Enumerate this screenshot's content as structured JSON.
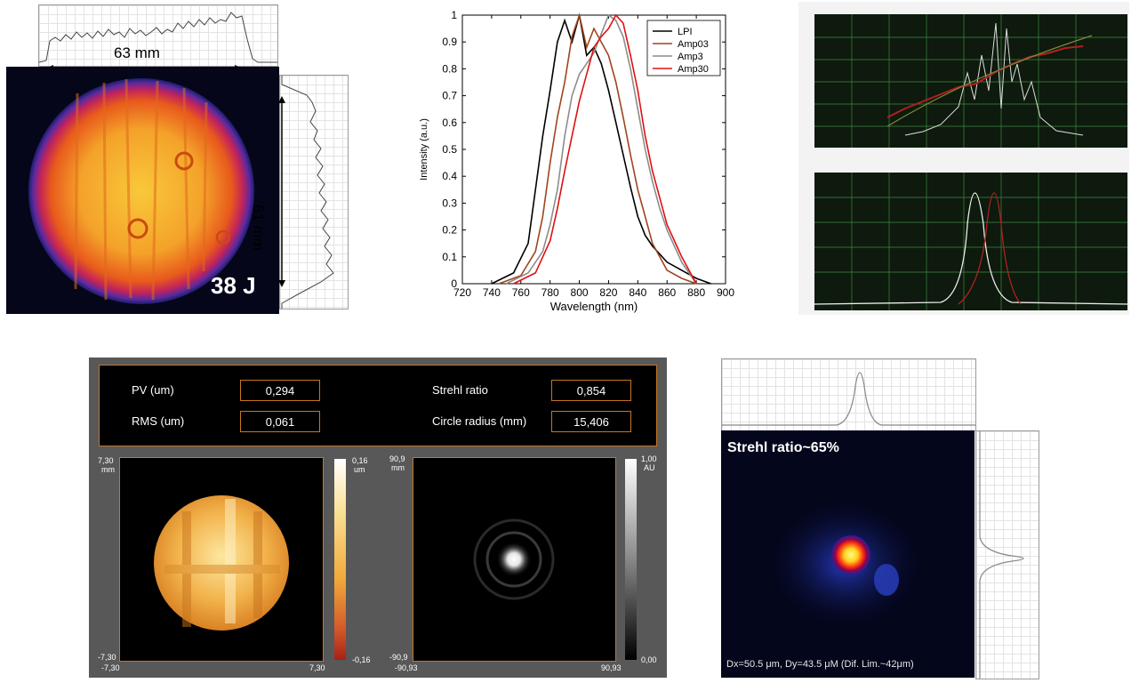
{
  "beam": {
    "width_label": "63 mm",
    "height_label": "61 mm",
    "energy_label": "38 J"
  },
  "spectrum": {
    "xlabel": "Wavelength (nm)",
    "ylabel": "Intensity (a.u.)"
  },
  "chart_data": {
    "type": "line",
    "xlabel": "Wavelength (nm)",
    "ylabel": "Intensity (a.u.)",
    "xlim": [
      720,
      900
    ],
    "ylim": [
      0,
      1
    ],
    "x_ticks": [
      "720",
      "740",
      "760",
      "780",
      "800",
      "820",
      "840",
      "860",
      "880",
      "900"
    ],
    "y_ticks": [
      "0",
      "0.1",
      "0.2",
      "0.3",
      "0.4",
      "0.5",
      "0.6",
      "0.7",
      "0.8",
      "0.9",
      "1"
    ],
    "legend_position": "top-right",
    "series": [
      {
        "name": "LPI",
        "color": "#000000",
        "x": [
          740,
          755,
          765,
          770,
          775,
          780,
          785,
          790,
          795,
          800,
          805,
          810,
          815,
          820,
          825,
          830,
          835,
          840,
          845,
          850,
          860,
          870,
          880,
          890
        ],
        "y": [
          0,
          0.04,
          0.15,
          0.35,
          0.55,
          0.72,
          0.9,
          0.98,
          0.9,
          1.0,
          0.85,
          0.88,
          0.82,
          0.72,
          0.6,
          0.48,
          0.36,
          0.25,
          0.18,
          0.14,
          0.08,
          0.05,
          0.02,
          0
        ]
      },
      {
        "name": "Amp03",
        "color": "#a0441e",
        "x": [
          745,
          760,
          770,
          775,
          780,
          785,
          790,
          795,
          800,
          805,
          810,
          815,
          820,
          825,
          830,
          835,
          840,
          845,
          850,
          860,
          870,
          880
        ],
        "y": [
          0,
          0.03,
          0.12,
          0.25,
          0.45,
          0.62,
          0.75,
          0.92,
          1.0,
          0.88,
          0.95,
          0.9,
          0.85,
          0.75,
          0.62,
          0.48,
          0.35,
          0.25,
          0.15,
          0.05,
          0.02,
          0
        ]
      },
      {
        "name": "Amp3",
        "color": "#8c8c8c",
        "x": [
          750,
          765,
          775,
          780,
          785,
          790,
          795,
          800,
          805,
          810,
          815,
          820,
          825,
          830,
          835,
          840,
          845,
          850,
          855,
          860,
          870,
          880
        ],
        "y": [
          0,
          0.04,
          0.12,
          0.22,
          0.35,
          0.55,
          0.7,
          0.78,
          0.82,
          0.86,
          0.93,
          1.0,
          0.98,
          0.92,
          0.8,
          0.65,
          0.5,
          0.38,
          0.28,
          0.2,
          0.08,
          0
        ]
      },
      {
        "name": "Amp30",
        "color": "#e01010",
        "x": [
          755,
          770,
          780,
          785,
          790,
          795,
          800,
          805,
          810,
          815,
          820,
          825,
          830,
          835,
          840,
          845,
          850,
          855,
          860,
          870,
          880
        ],
        "y": [
          0,
          0.04,
          0.16,
          0.28,
          0.42,
          0.55,
          0.68,
          0.78,
          0.88,
          0.92,
          0.95,
          1.0,
          0.97,
          0.85,
          0.72,
          0.55,
          0.42,
          0.32,
          0.22,
          0.1,
          0
        ]
      }
    ]
  },
  "wavefront": {
    "pv_label": "PV (um)",
    "pv_value": "0,294",
    "rms_label": "RMS (um)",
    "rms_value": "0,061",
    "strehl_label": "Strehl ratio",
    "strehl_value": "0,854",
    "radius_label": "Circle radius (mm)",
    "radius_value": "15,406",
    "phase_map": {
      "y_top": "7,30",
      "y_unit": "mm",
      "y_bottom": "-7,30",
      "x_left": "-7,30",
      "x_right": "7,30",
      "scale_top": "0,16",
      "scale_unit": "um",
      "scale_bottom": "-0,16"
    },
    "psf_map": {
      "y_top": "90,9",
      "y_unit": "mm",
      "y_bottom": "-90,9",
      "x_left": "-90,93",
      "x_right": "90,93",
      "scale_top": "1,00",
      "scale_unit": "AU",
      "scale_bottom": "0,00"
    }
  },
  "focal": {
    "title": "Strehl ratio~65%",
    "caption": "Dx=50.5 μm, Dy=43.5 μM (Dif. Lim.~42μm)"
  },
  "colors": {
    "orange_border": "#c7761f",
    "panel_gray": "#585858"
  }
}
